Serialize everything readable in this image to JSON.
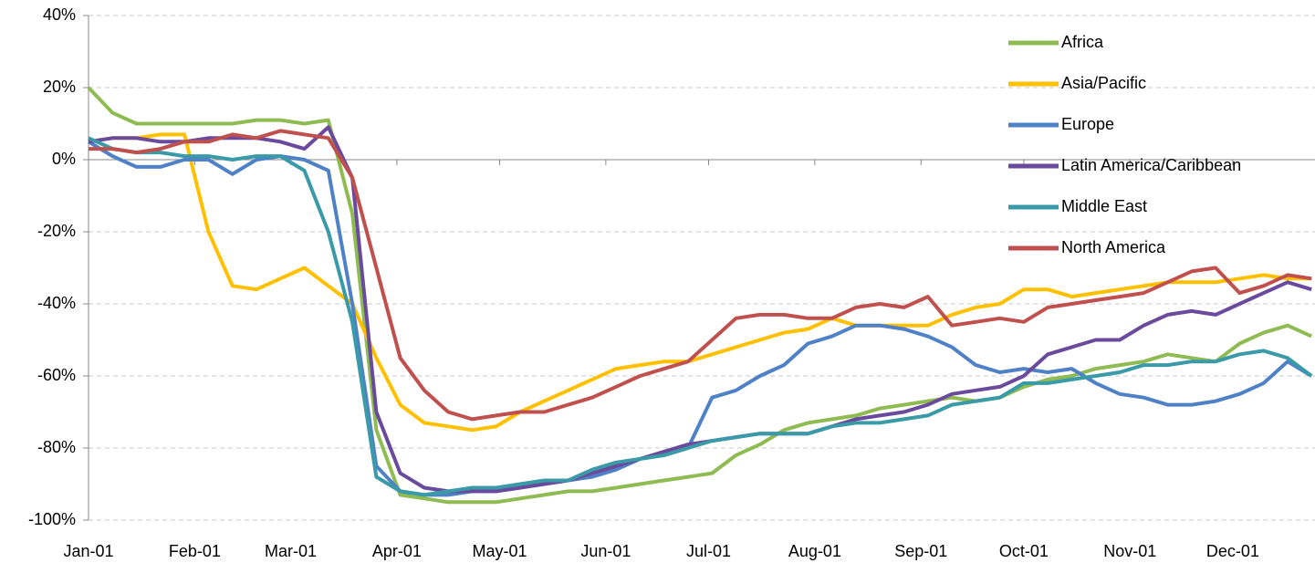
{
  "chart_data": {
    "type": "line",
    "x": [
      0,
      7,
      14,
      21,
      28,
      35,
      42,
      49,
      56,
      63,
      70,
      77,
      84,
      91,
      98,
      105,
      112,
      119,
      126,
      133,
      140,
      147,
      154,
      161,
      168,
      175,
      182,
      189,
      196,
      203,
      210,
      217,
      224,
      231,
      238,
      245,
      252,
      259,
      266,
      273,
      280,
      287,
      294,
      301,
      308,
      315,
      322,
      329,
      336,
      343,
      350,
      357
    ],
    "xlim": [
      0,
      358
    ],
    "xticks": [
      {
        "value": 0,
        "label": "Jan-01"
      },
      {
        "value": 31,
        "label": "Feb-01"
      },
      {
        "value": 59,
        "label": "Mar-01"
      },
      {
        "value": 90,
        "label": "Apr-01"
      },
      {
        "value": 120,
        "label": "May-01"
      },
      {
        "value": 151,
        "label": "Jun-01"
      },
      {
        "value": 181,
        "label": "Jul-01"
      },
      {
        "value": 212,
        "label": "Aug-01"
      },
      {
        "value": 243,
        "label": "Sep-01"
      },
      {
        "value": 273,
        "label": "Oct-01"
      },
      {
        "value": 304,
        "label": "Nov-01"
      },
      {
        "value": 334,
        "label": "Dec-01"
      }
    ],
    "ylim": [
      -100,
      40
    ],
    "yticks": [
      {
        "value": -100,
        "label": "-100%"
      },
      {
        "value": -80,
        "label": "-80%"
      },
      {
        "value": -60,
        "label": "-60%"
      },
      {
        "value": -40,
        "label": "-40%"
      },
      {
        "value": -20,
        "label": "-20%"
      },
      {
        "value": 0,
        "label": "0%"
      },
      {
        "value": 20,
        "label": "20%"
      },
      {
        "value": 40,
        "label": "40%"
      }
    ],
    "grid": true,
    "legend": "upper right",
    "series": [
      {
        "name": "Africa",
        "color": "#8fbc52",
        "values": [
          20,
          13,
          10,
          10,
          10,
          10,
          10,
          11,
          11,
          10,
          11,
          -15,
          -75,
          -93,
          -94,
          -95,
          -95,
          -95,
          -94,
          -93,
          -92,
          -92,
          -91,
          -90,
          -89,
          -88,
          -87,
          -82,
          -79,
          -75,
          -73,
          -72,
          -71,
          -69,
          -68,
          -67,
          -66,
          -67,
          -66,
          -63,
          -61,
          -60,
          -58,
          -57,
          -56,
          -54,
          -55,
          -56,
          -51,
          -48,
          -46,
          -49
        ]
      },
      {
        "name": "Asia/Pacific",
        "color": "#ffc000",
        "values": [
          5,
          6,
          6,
          7,
          7,
          -20,
          -35,
          -36,
          -33,
          -30,
          -35,
          -40,
          -55,
          -68,
          -73,
          -74,
          -75,
          -74,
          -70,
          -67,
          -64,
          -61,
          -58,
          -57,
          -56,
          -56,
          -54,
          -52,
          -50,
          -48,
          -47,
          -44,
          -46,
          -46,
          -46,
          -46,
          -43,
          -41,
          -40,
          -36,
          -36,
          -38,
          -37,
          -36,
          -35,
          -34,
          -34,
          -34,
          -33,
          -32,
          -33,
          -33
        ]
      },
      {
        "name": "Europe",
        "color": "#4f81c7",
        "values": [
          5,
          1,
          -2,
          -2,
          0,
          0,
          -4,
          0,
          1,
          0,
          -3,
          -40,
          -85,
          -92,
          -93,
          -93,
          -92,
          -92,
          -91,
          -90,
          -89,
          -88,
          -86,
          -83,
          -82,
          -80,
          -66,
          -64,
          -60,
          -57,
          -51,
          -49,
          -46,
          -46,
          -47,
          -49,
          -52,
          -57,
          -59,
          -58,
          -59,
          -58,
          -62,
          -65,
          -66,
          -68,
          -68,
          -67,
          -65,
          -62,
          -56,
          -60
        ]
      },
      {
        "name": "Latin America/Caribbean",
        "color": "#6a4a9c",
        "values": [
          5,
          6,
          6,
          5,
          5,
          6,
          6,
          6,
          5,
          3,
          9,
          -5,
          -70,
          -87,
          -91,
          -92,
          -92,
          -92,
          -91,
          -90,
          -89,
          -87,
          -85,
          -83,
          -81,
          -79,
          -78,
          -77,
          -76,
          -76,
          -76,
          -74,
          -72,
          -71,
          -70,
          -68,
          -65,
          -64,
          -63,
          -60,
          -54,
          -52,
          -50,
          -50,
          -46,
          -43,
          -42,
          -43,
          -40,
          -37,
          -34,
          -36
        ]
      },
      {
        "name": "Middle East",
        "color": "#3a9aa8",
        "values": [
          6,
          3,
          2,
          2,
          1,
          1,
          0,
          1,
          1,
          -3,
          -20,
          -45,
          -88,
          -92,
          -93,
          -92,
          -91,
          -91,
          -90,
          -89,
          -89,
          -86,
          -84,
          -83,
          -82,
          -80,
          -78,
          -77,
          -76,
          -76,
          -76,
          -74,
          -73,
          -73,
          -72,
          -71,
          -68,
          -67,
          -66,
          -62,
          -62,
          -61,
          -60,
          -59,
          -57,
          -57,
          -56,
          -56,
          -54,
          -53,
          -55,
          -60
        ]
      },
      {
        "name": "North America",
        "color": "#c0504d",
        "values": [
          3,
          3,
          2,
          3,
          5,
          5,
          7,
          6,
          8,
          7,
          6,
          -5,
          -30,
          -55,
          -64,
          -70,
          -72,
          -71,
          -70,
          -70,
          -68,
          -66,
          -63,
          -60,
          -58,
          -56,
          -50,
          -44,
          -43,
          -43,
          -44,
          -44,
          -41,
          -40,
          -41,
          -38,
          -46,
          -45,
          -44,
          -45,
          -41,
          -40,
          -39,
          -38,
          -37,
          -34,
          -31,
          -30,
          -37,
          -35,
          -32,
          -33
        ]
      }
    ]
  }
}
